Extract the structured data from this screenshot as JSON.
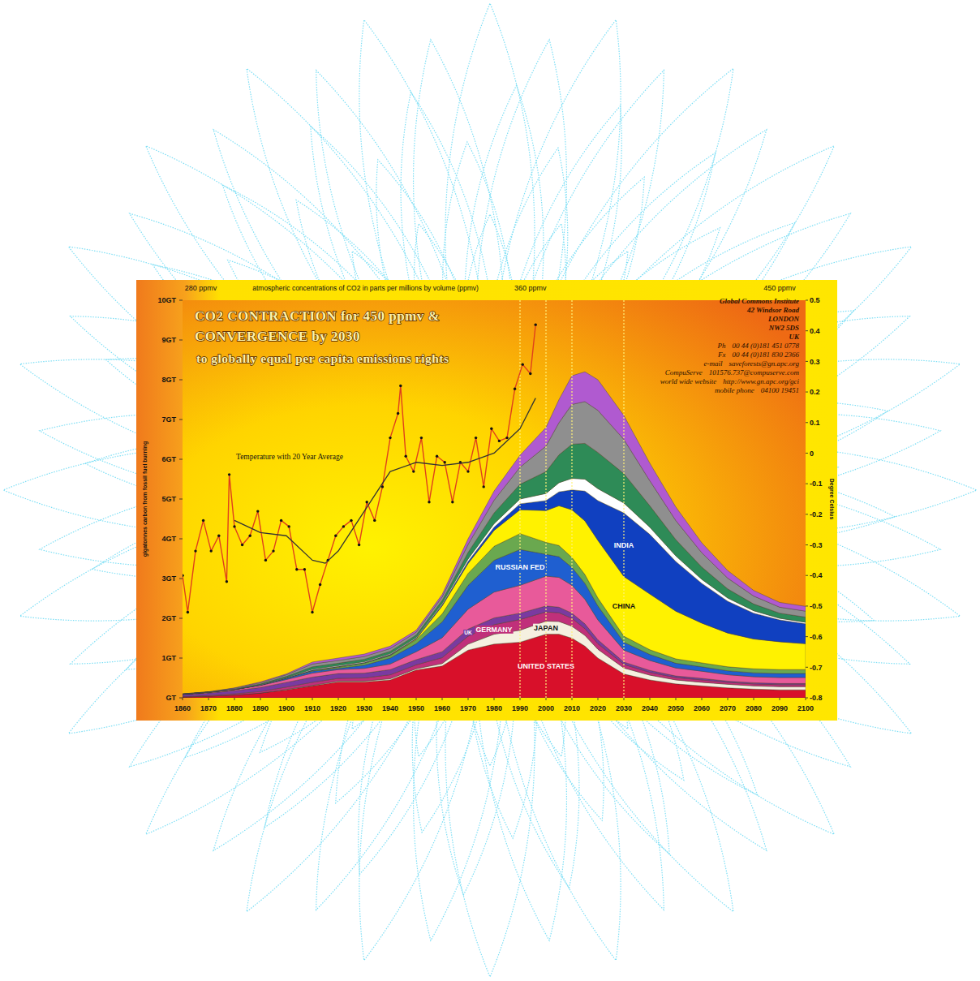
{
  "chart_data": {
    "type": "area",
    "stacked": true,
    "grid": false,
    "title": "CO2 CONTRACTION for 450 ppmv & CONVERGENCE by 2030",
    "subtitle": "to globally equal per capita emissions rights",
    "y_label": "gigatonnes carbon from fossil fuel burning",
    "y2_label": "Degree Celsius",
    "top_axis": {
      "title": "atmospheric concentrations of CO2 in parts per millions by volume (ppmv)",
      "ticks": [
        {
          "value": 1867,
          "label": "280 ppmv"
        },
        {
          "value": 1994,
          "label": "360 ppmv"
        },
        {
          "value": 2090,
          "label": "450 ppmv"
        }
      ]
    },
    "annotations": [
      "Temperature with 20 Year Average"
    ],
    "contact": {
      "lines": [
        "Global Commons Institute",
        "42 Windsor Road",
        "LONDON",
        "NW2 5DS",
        "UK"
      ],
      "fields": [
        [
          "Ph",
          "00 44 (0)181 451 0778"
        ],
        [
          "Fx",
          "00 44 (0)181 830 2366"
        ],
        [
          "e-mail",
          "saveforests@gn.apc.org"
        ],
        [
          "CompuServe",
          "101576.737@compuserve.com"
        ],
        [
          "world wide website",
          "http://www.gn.apc.org/gci"
        ],
        [
          "mobile phone",
          "04100 19451"
        ]
      ]
    },
    "x": [
      1860,
      1870,
      1880,
      1890,
      1900,
      1910,
      1920,
      1930,
      1940,
      1950,
      1960,
      1970,
      1980,
      1990,
      2000,
      2005,
      2010,
      2015,
      2020,
      2030,
      2040,
      2050,
      2060,
      2070,
      2080,
      2090,
      2100
    ],
    "xlim": [
      1860,
      2100
    ],
    "xticks": [
      1860,
      1870,
      1880,
      1890,
      1900,
      1910,
      1920,
      1930,
      1940,
      1950,
      1960,
      1970,
      1980,
      1990,
      2000,
      2010,
      2020,
      2030,
      2040,
      2050,
      2060,
      2070,
      2080,
      2090,
      2100
    ],
    "ylim": [
      0,
      10
    ],
    "yticks": [
      {
        "value": 0,
        "label": "GT"
      },
      {
        "value": 1,
        "label": "1GT"
      },
      {
        "value": 2,
        "label": "2GT"
      },
      {
        "value": 3,
        "label": "3GT"
      },
      {
        "value": 4,
        "label": "4GT"
      },
      {
        "value": 5,
        "label": "5GT"
      },
      {
        "value": 6,
        "label": "6GT"
      },
      {
        "value": 7,
        "label": "7GT"
      },
      {
        "value": 8,
        "label": "8GT"
      },
      {
        "value": 9,
        "label": "9GT"
      },
      {
        "value": 10,
        "label": "10GT"
      }
    ],
    "y2lim": [
      -0.8,
      0.5
    ],
    "y2ticks": [
      0.5,
      0.4,
      0.3,
      0.2,
      0.1,
      0,
      -0.1,
      -0.2,
      -0.3,
      -0.4,
      -0.5,
      -0.6,
      -0.7,
      -0.8
    ],
    "x_markers": [
      1990,
      2000,
      2010,
      2030
    ],
    "series": [
      {
        "name": "UNITED STATES",
        "color": "#d8102a",
        "values": [
          0.02,
          0.04,
          0.07,
          0.12,
          0.2,
          0.3,
          0.4,
          0.4,
          0.45,
          0.7,
          0.8,
          1.2,
          1.35,
          1.4,
          1.6,
          1.6,
          1.5,
          1.3,
          1.0,
          0.6,
          0.45,
          0.35,
          0.3,
          0.25,
          0.22,
          0.2,
          0.2
        ]
      },
      {
        "name": "JAPAN",
        "color": "#f5f0e0",
        "values": [
          0,
          0,
          0,
          0,
          0.01,
          0.01,
          0.02,
          0.02,
          0.03,
          0.03,
          0.06,
          0.15,
          0.25,
          0.3,
          0.33,
          0.32,
          0.3,
          0.27,
          0.22,
          0.15,
          0.12,
          0.1,
          0.09,
          0.09,
          0.08,
          0.08,
          0.08
        ]
      },
      {
        "name": "GERMANY",
        "color": "#c0307a",
        "values": [
          0.01,
          0.02,
          0.03,
          0.04,
          0.06,
          0.08,
          0.07,
          0.08,
          0.1,
          0.1,
          0.15,
          0.2,
          0.24,
          0.27,
          0.23,
          0.22,
          0.2,
          0.17,
          0.14,
          0.09,
          0.07,
          0.06,
          0.06,
          0.05,
          0.05,
          0.05,
          0.05
        ]
      },
      {
        "name": "UK",
        "color": "#7a3aa0",
        "values": [
          0.05,
          0.06,
          0.08,
          0.1,
          0.12,
          0.13,
          0.12,
          0.12,
          0.13,
          0.13,
          0.15,
          0.18,
          0.17,
          0.16,
          0.15,
          0.14,
          0.13,
          0.12,
          0.1,
          0.06,
          0.05,
          0.04,
          0.04,
          0.03,
          0.03,
          0.03,
          0.03
        ]
      },
      {
        "color": "#e85a9a",
        "values": [
          0.01,
          0.02,
          0.03,
          0.05,
          0.07,
          0.1,
          0.1,
          0.12,
          0.14,
          0.2,
          0.35,
          0.5,
          0.65,
          0.7,
          0.75,
          0.75,
          0.7,
          0.62,
          0.5,
          0.3,
          0.25,
          0.2,
          0.18,
          0.16,
          0.15,
          0.15,
          0.15
        ]
      },
      {
        "name": "RUSSIAN FED",
        "color": "#1f5fd0",
        "values": [
          0,
          0,
          0,
          0.01,
          0.03,
          0.05,
          0.03,
          0.08,
          0.15,
          0.2,
          0.4,
          0.6,
          0.8,
          0.9,
          0.55,
          0.52,
          0.45,
          0.4,
          0.35,
          0.2,
          0.15,
          0.12,
          0.11,
          0.1,
          0.1,
          0.1,
          0.1
        ]
      },
      {
        "color": "#6aa84f",
        "values": [
          0,
          0,
          0,
          0,
          0.01,
          0.02,
          0.03,
          0.05,
          0.06,
          0.1,
          0.2,
          0.3,
          0.35,
          0.4,
          0.3,
          0.28,
          0.25,
          0.22,
          0.2,
          0.15,
          0.12,
          0.11,
          0.1,
          0.1,
          0.1,
          0.1,
          0.1
        ]
      },
      {
        "name": "CHINA",
        "color": "#fff200",
        "values": [
          0,
          0,
          0,
          0,
          0,
          0,
          0.01,
          0.01,
          0.01,
          0.02,
          0.2,
          0.25,
          0.4,
          0.6,
          0.8,
          1.0,
          1.2,
          1.35,
          1.45,
          1.5,
          1.4,
          1.2,
          1.0,
          0.85,
          0.75,
          0.7,
          0.65
        ]
      },
      {
        "name": "INDIA",
        "color": "#1040c0",
        "values": [
          0,
          0,
          0,
          0,
          0,
          0.01,
          0.01,
          0.01,
          0.02,
          0.02,
          0.03,
          0.05,
          0.08,
          0.15,
          0.25,
          0.35,
          0.5,
          0.75,
          1.0,
          1.6,
          1.5,
          1.25,
          1.0,
          0.8,
          0.65,
          0.55,
          0.5
        ]
      },
      {
        "color": "#ffffff",
        "values": [
          0,
          0,
          0,
          0.01,
          0.01,
          0.02,
          0.02,
          0.02,
          0.02,
          0.02,
          0.03,
          0.06,
          0.09,
          0.12,
          0.18,
          0.23,
          0.29,
          0.3,
          0.3,
          0.25,
          0.18,
          0.14,
          0.1,
          0.08,
          0.06,
          0.04,
          0.04
        ]
      },
      {
        "color": "#2e8b57",
        "values": [
          0,
          0,
          0.01,
          0.02,
          0.03,
          0.06,
          0.06,
          0.06,
          0.06,
          0.06,
          0.08,
          0.17,
          0.27,
          0.37,
          0.55,
          0.7,
          0.86,
          0.9,
          0.91,
          0.74,
          0.54,
          0.41,
          0.31,
          0.23,
          0.17,
          0.13,
          0.13
        ]
      },
      {
        "color": "#8f8f8f",
        "values": [
          0.01,
          0.01,
          0.02,
          0.03,
          0.04,
          0.07,
          0.07,
          0.07,
          0.07,
          0.07,
          0.09,
          0.2,
          0.32,
          0.43,
          0.64,
          0.81,
          1.0,
          1.05,
          1.06,
          0.86,
          0.63,
          0.48,
          0.36,
          0.27,
          0.2,
          0.15,
          0.15
        ]
      },
      {
        "color": "#b05ad0",
        "values": [
          0,
          0,
          0.01,
          0.02,
          0.02,
          0.05,
          0.06,
          0.06,
          0.06,
          0.05,
          0.06,
          0.14,
          0.23,
          0.3,
          0.47,
          0.58,
          0.72,
          0.75,
          0.77,
          0.6,
          0.44,
          0.34,
          0.25,
          0.19,
          0.14,
          0.12,
          0.12
        ]
      },
      {
        "type": "line",
        "axis": "y2",
        "color": "#e0401c",
        "marker": "circle",
        "x": [
          1860,
          1862,
          1865,
          1868,
          1871,
          1874,
          1877,
          1878,
          1880,
          1883,
          1886,
          1889,
          1892,
          1895,
          1898,
          1901,
          1904,
          1907,
          1910,
          1913,
          1916,
          1919,
          1922,
          1925,
          1928,
          1931,
          1934,
          1937,
          1940,
          1943,
          1944,
          1946,
          1949,
          1952,
          1955,
          1958,
          1961,
          1964,
          1967,
          1970,
          1973,
          1976,
          1979,
          1982,
          1985,
          1988,
          1991,
          1994,
          1996
        ],
        "values": [
          -0.4,
          -0.52,
          -0.32,
          -0.22,
          -0.32,
          -0.27,
          -0.42,
          -0.07,
          -0.24,
          -0.3,
          -0.27,
          -0.19,
          -0.35,
          -0.32,
          -0.22,
          -0.24,
          -0.38,
          -0.38,
          -0.52,
          -0.43,
          -0.35,
          -0.27,
          -0.24,
          -0.22,
          -0.3,
          -0.16,
          -0.22,
          -0.11,
          0.05,
          0.13,
          0.22,
          -0.01,
          -0.06,
          0.05,
          -0.16,
          -0.01,
          -0.03,
          -0.16,
          -0.03,
          -0.06,
          0.05,
          -0.11,
          0.08,
          0.04,
          0.05,
          0.21,
          0.29,
          0.26,
          0.42
        ]
      },
      {
        "type": "line",
        "axis": "y2",
        "color": "#333333",
        "x": [
          1880,
          1890,
          1900,
          1910,
          1915,
          1920,
          1930,
          1940,
          1950,
          1960,
          1970,
          1980,
          1990,
          1996
        ],
        "values": [
          -0.22,
          -0.26,
          -0.27,
          -0.35,
          -0.36,
          -0.32,
          -0.19,
          -0.06,
          -0.03,
          -0.04,
          -0.03,
          0,
          0.08,
          0.18
        ]
      }
    ]
  }
}
